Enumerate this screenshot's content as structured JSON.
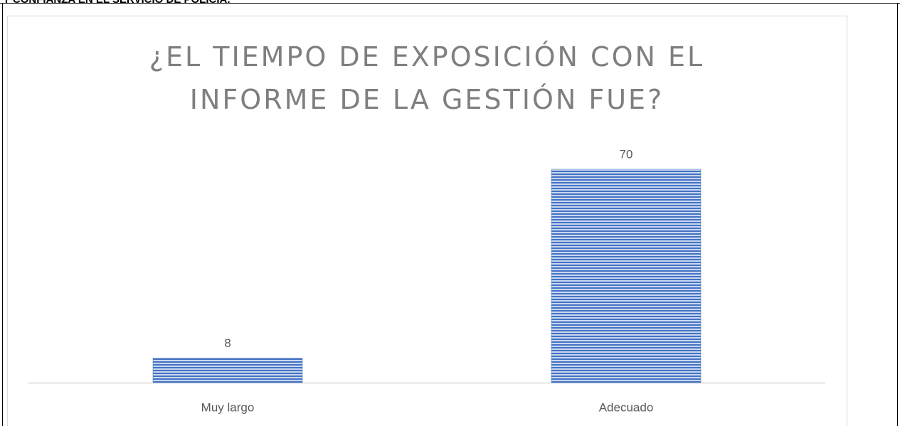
{
  "header": {
    "text": "Y CONFIANZA EN EL SERVICIO DE POLICIA."
  },
  "chart_data": {
    "type": "bar",
    "title": "¿EL TIEMPO DE EXPOSICIÓN CON EL INFORME DE LA GESTIÓN FUE?",
    "categories": [
      "Muy largo",
      "Adecuado"
    ],
    "values": [
      8,
      70
    ],
    "color": "#4472c4"
  }
}
